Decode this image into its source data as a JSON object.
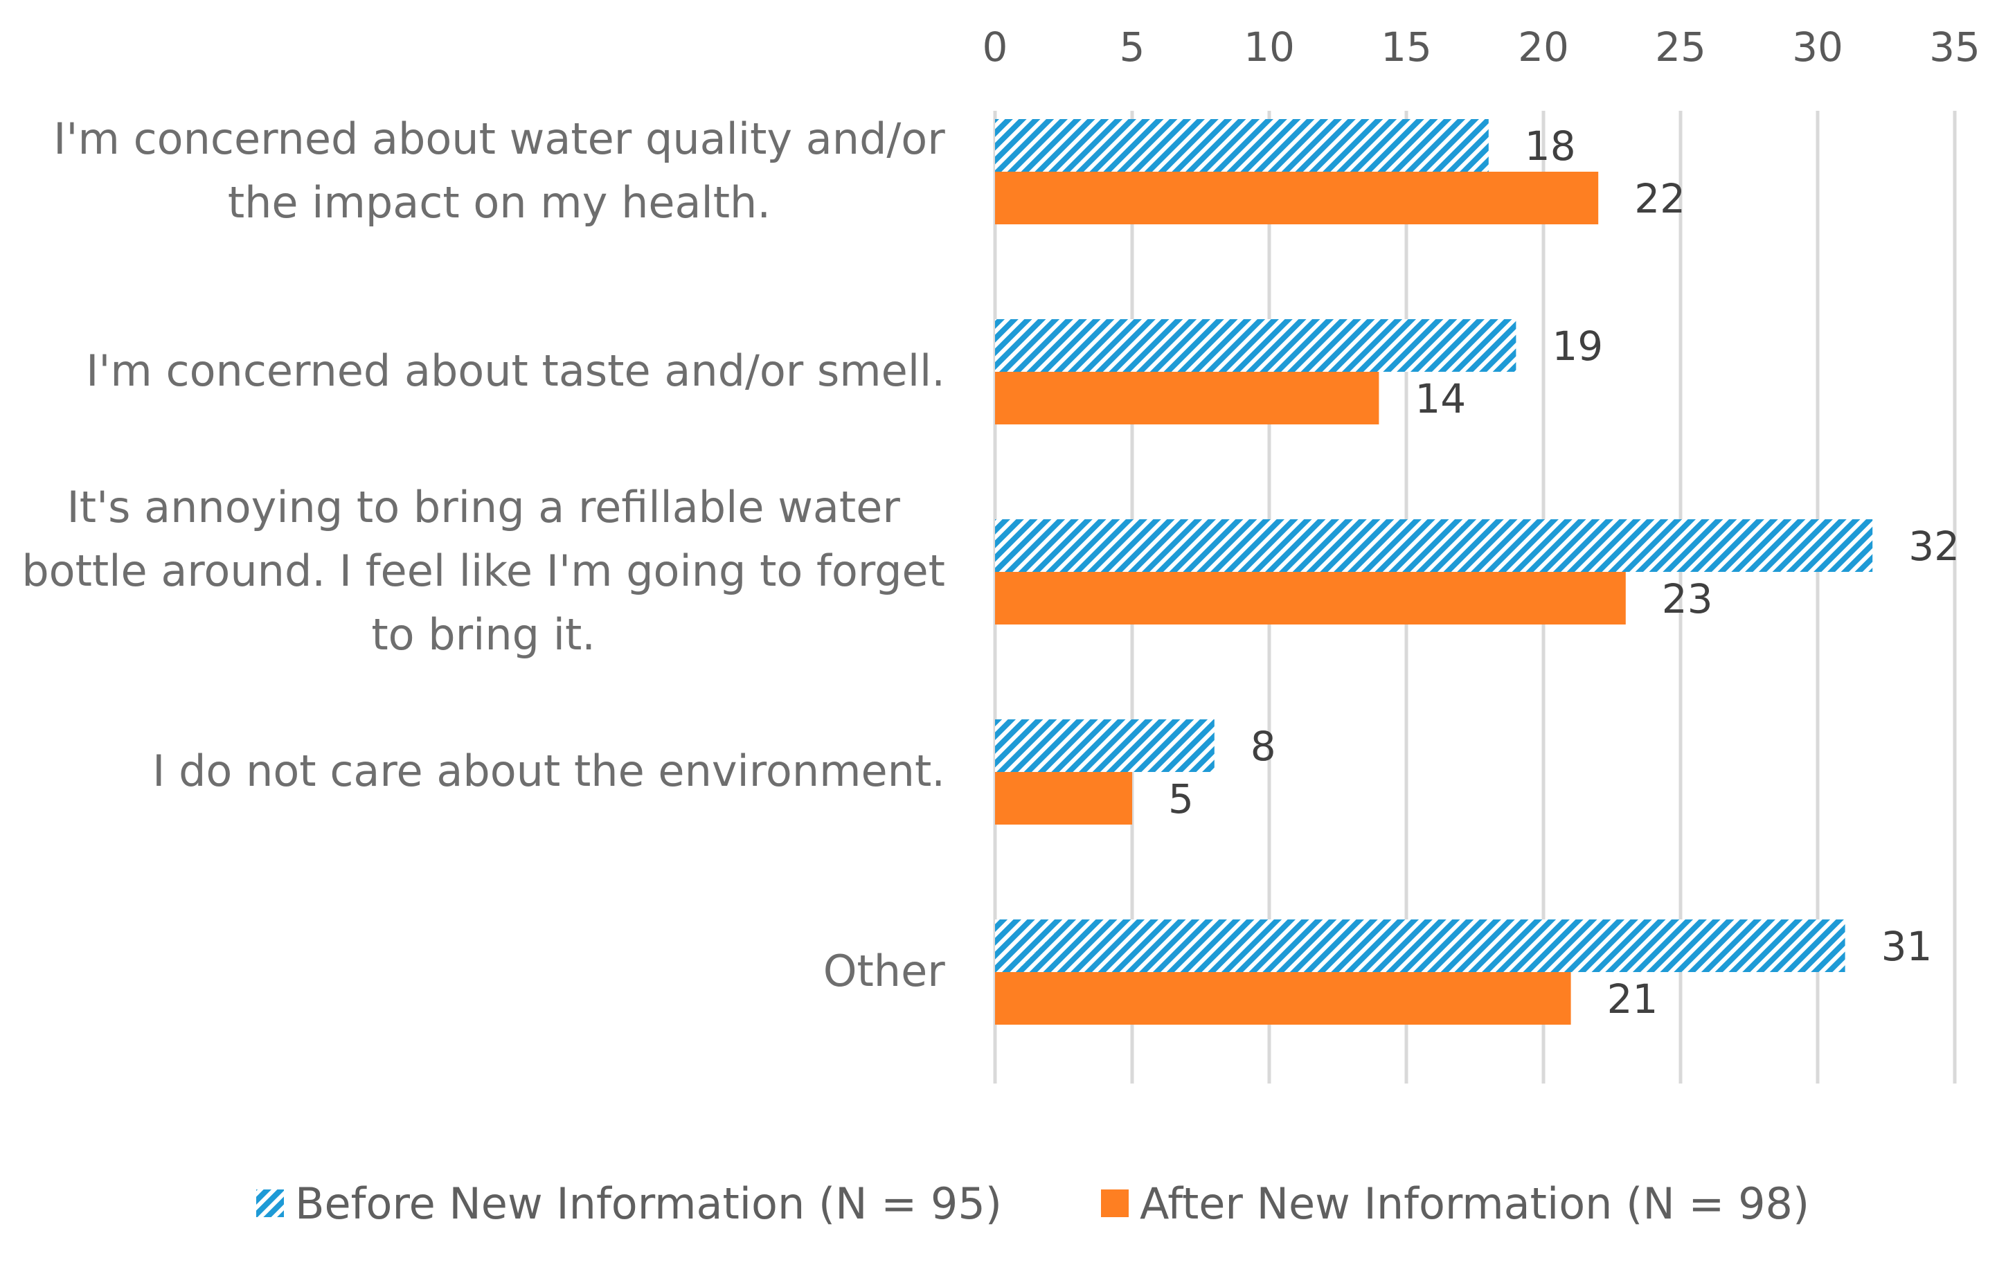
{
  "colors": {
    "before": "#1e9ad6",
    "after": "#fe7f22",
    "grid": "#d9d9d9",
    "text": "#595959"
  },
  "chart_data": {
    "type": "bar",
    "orientation": "horizontal",
    "title": "",
    "xlabel": "",
    "ylabel": "",
    "xlim": [
      0,
      35
    ],
    "xticks": [
      0,
      5,
      10,
      15,
      20,
      25,
      30,
      35
    ],
    "x_axis_position": "top",
    "grid": true,
    "legend_position": "bottom",
    "categories": [
      [
        "I'm concerned about water quality and/or",
        "the impact on my health."
      ],
      [
        "I'm concerned about taste and/or smell."
      ],
      [
        "It's annoying to bring a refillable water",
        "bottle around. I feel like I'm going to forget",
        "to bring it."
      ],
      [
        "I do not care about the environment."
      ],
      [
        "Other"
      ]
    ],
    "series": [
      {
        "name": "Before New Information (N = 95)",
        "pattern": "diagonal-stripes",
        "values": [
          18,
          19,
          32,
          8,
          31
        ]
      },
      {
        "name": "After New Information (N = 98)",
        "pattern": "solid",
        "values": [
          22,
          14,
          23,
          5,
          21
        ]
      }
    ]
  }
}
